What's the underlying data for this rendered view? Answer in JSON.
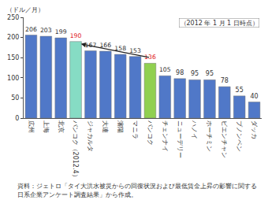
{
  "chart_data": {
    "type": "bar",
    "y_label": "（ドル／月）",
    "annotation": "（2012 年 1 月 1 日時点）",
    "source": "資料：ジェトロ「タイ大洪水被災からの回復状況および最低賃金上昇の影響に関する日系企業アンケート調査結果」から作成。",
    "categories": [
      "広州",
      "上海",
      "北京",
      "バンコク（2012.4）",
      "ジャカルタ",
      "大連",
      "瀋陽",
      "マニラ",
      "バンコク",
      "チェンナイ",
      "ニューデリー",
      "ハノイ",
      "ホーチミン",
      "ビエンチャン",
      "プノンペン",
      "ダッカ"
    ],
    "values": [
      206,
      203,
      199,
      190,
      167,
      166,
      158,
      153,
      136,
      105,
      98,
      95,
      95,
      78,
      55,
      40
    ],
    "color": "#5078c8",
    "colors": [
      "#5078c8",
      "#5078c8",
      "#5078c8",
      "#86dcc4",
      "#5078c8",
      "#5078c8",
      "#5078c8",
      "#5078c8",
      "#90d050",
      "#5078c8",
      "#5078c8",
      "#5078c8",
      "#5078c8",
      "#5078c8",
      "#5078c8",
      "#5078c8"
    ],
    "ylim": [
      0,
      250
    ],
    "yticks": [
      0,
      50,
      100,
      150,
      200,
      250
    ],
    "grid": false,
    "data_labels": true
  }
}
